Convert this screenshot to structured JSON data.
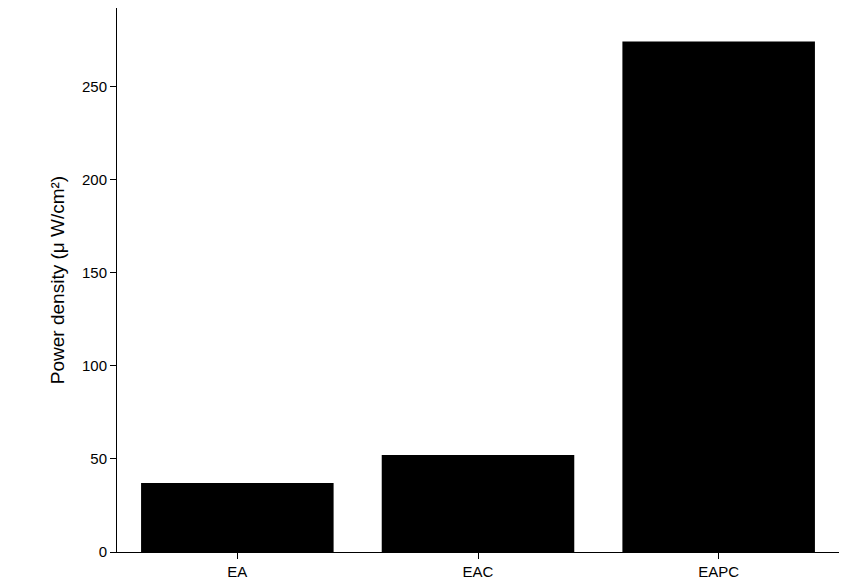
{
  "chart_data": {
    "type": "bar",
    "y_label": "Power density (μ W/cm²)",
    "categories": [
      "EA",
      "EAC",
      "EAPC"
    ],
    "values": [
      37,
      52,
      274
    ],
    "color": "#000000",
    "ylim": [
      0,
      292
    ],
    "yticks": [
      0,
      50,
      100,
      150,
      200,
      250
    ],
    "grid": false
  }
}
